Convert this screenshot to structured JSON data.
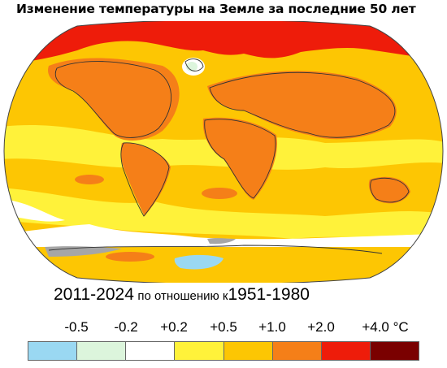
{
  "title": "Изменение температуры на Земле за последние 50 лет",
  "period": {
    "years": "2011-2024",
    "relative_text": "по отношению к",
    "baseline": "1951-1980"
  },
  "legend": {
    "ticks": [
      "-0.5",
      "-0.2",
      "+0.2",
      "+0.5",
      "+1.0",
      "+2.0",
      "+4.0 °C"
    ],
    "bins": [
      {
        "color": "#9ad8f2"
      },
      {
        "color": "#dcf5dc"
      },
      {
        "color": "#ffffff"
      },
      {
        "color": "#fff23a"
      },
      {
        "color": "#fdc603"
      },
      {
        "color": "#f57f18"
      },
      {
        "color": "#ee1c0a"
      },
      {
        "color": "#7a0000"
      }
    ]
  },
  "colors": {
    "very_high": "#ee1c0a",
    "high": "#f57f18",
    "medium": "#fdc603",
    "low": "#fff23a",
    "neutral": "#ffffff",
    "slight_cool": "#dcf5dc",
    "cool": "#9ad8f2",
    "no_data": "#a6a6a6"
  }
}
